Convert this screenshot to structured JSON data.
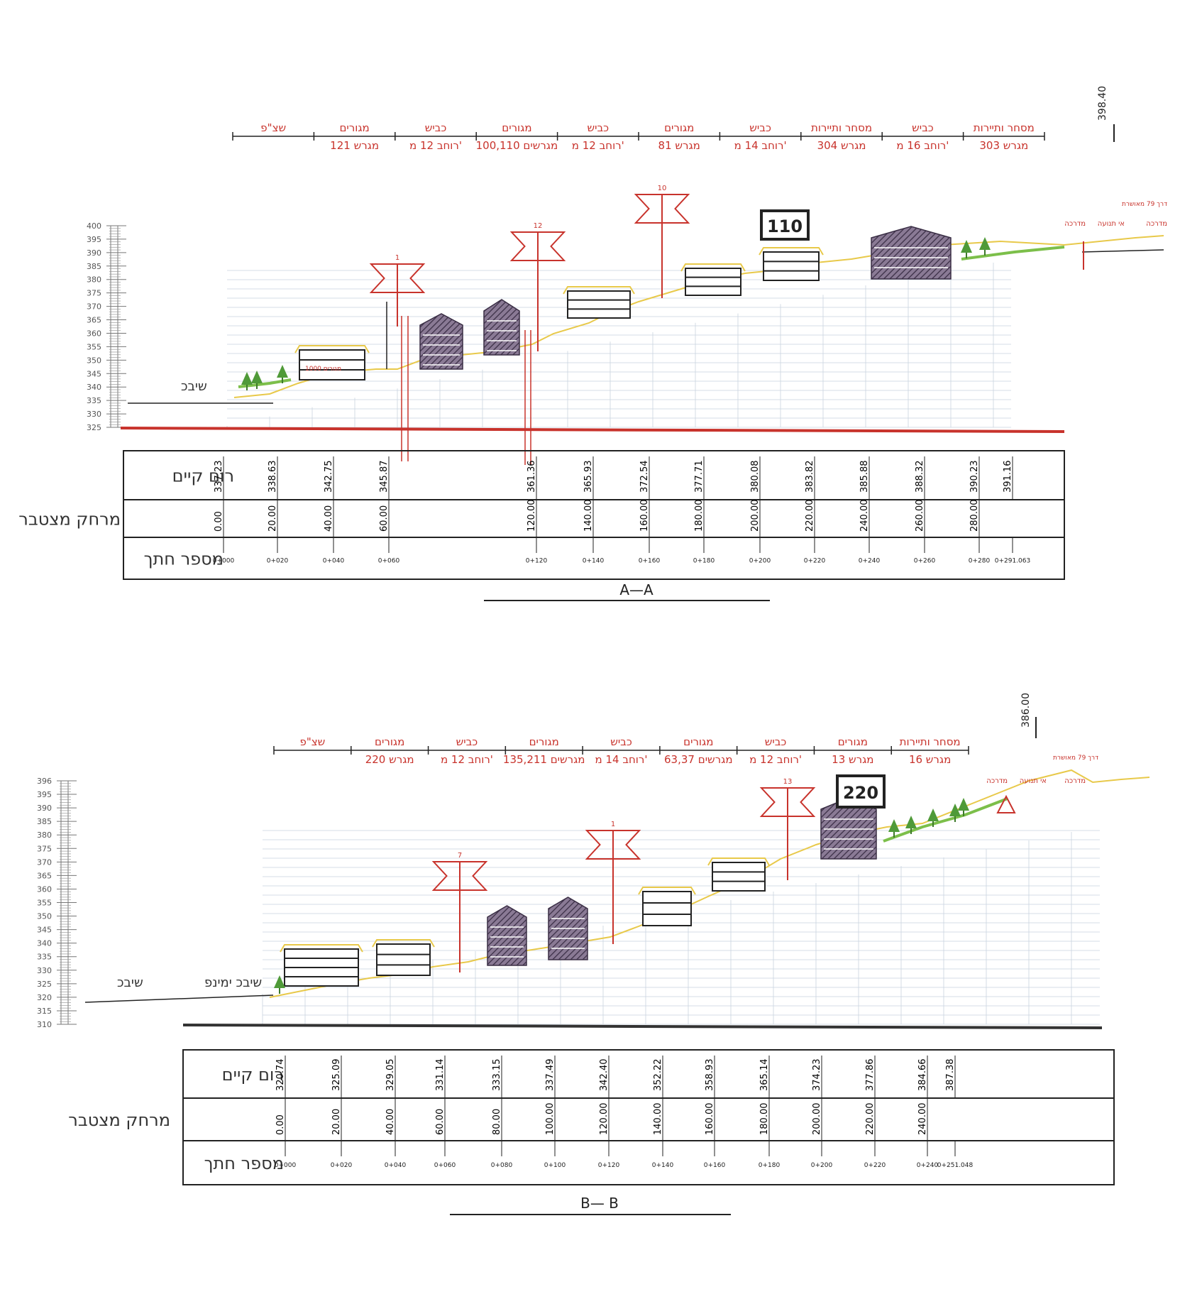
{
  "colors": {
    "red": "#c8332c",
    "grid": "#c9d3df",
    "road": "#e8c94a",
    "green": "#7cbf4a",
    "ink": "#222222"
  },
  "section_a": {
    "title": "A—A",
    "elevation_marker": "398.40",
    "header": [
      {
        "top": "מסחר ותיירות",
        "bottom": "מגרש 303"
      },
      {
        "top": "כביש",
        "bottom": "רוחב 16 מ'"
      },
      {
        "top": "מסחר ותיירות",
        "bottom": "מגרש 304"
      },
      {
        "top": "כביש",
        "bottom": "רוחב 14 מ'"
      },
      {
        "top": "מגורים",
        "bottom": "מגרש 81"
      },
      {
        "top": "כביש",
        "bottom": "רוחב 12 מ'"
      },
      {
        "top": "מגורים",
        "bottom": "מגרשים 100,110"
      },
      {
        "top": "כביש",
        "bottom": "רוחב 12 מ'"
      },
      {
        "top": "מגורים",
        "bottom": "מגרש 121"
      },
      {
        "top": "שצ\"פ",
        "bottom": ""
      }
    ],
    "scale": [
      "400",
      "395",
      "390",
      "385",
      "380",
      "375",
      "370",
      "365",
      "360",
      "355",
      "350",
      "345",
      "340",
      "335",
      "330",
      "325"
    ],
    "lot_label": "110",
    "sheviv_label": "שיבכ",
    "small_label": "מגורים 1000",
    "labels_right": [
      "דרך 79 מאושרת",
      "מדרכה",
      "אי תנועה",
      "מדרכה"
    ],
    "row_labels": [
      "רום קיים",
      "מרחק מצטבר",
      "מספר חתך"
    ],
    "cross_marks": [
      "1",
      "12",
      "10"
    ],
    "elev": [
      "337.23",
      "338.63",
      "342.75",
      "345.87",
      "361.36",
      "365.93",
      "372.54",
      "377.71",
      "380.08",
      "383.82",
      "385.88",
      "388.32",
      "390.23",
      "391.16"
    ],
    "dist": [
      "0.00",
      "20.00",
      "40.00",
      "60.00",
      "120.00",
      "140.00",
      "160.00",
      "180.00",
      "200.00",
      "220.00",
      "240.00",
      "260.00",
      "280.00"
    ],
    "chain": [
      "0+000",
      "0+020",
      "0+040",
      "0+060",
      "0+120",
      "0+140",
      "0+160",
      "0+180",
      "0+200",
      "0+220",
      "0+240",
      "0+260",
      "0+280",
      "0+291.063"
    ]
  },
  "section_b": {
    "title": "B— B",
    "elevation_marker": "386.00",
    "header": [
      {
        "top": "מסחר ותיירות",
        "bottom": "מגרש 16"
      },
      {
        "top": "מגורים",
        "bottom": "מגרש 13"
      },
      {
        "top": "כביש",
        "bottom": "רוחב 12 מ'"
      },
      {
        "top": "מגורים",
        "bottom": "מגרשים 63,37"
      },
      {
        "top": "כביש",
        "bottom": "רוחב 14 מ'"
      },
      {
        "top": "מגורים",
        "bottom": "מגרשים 135,211"
      },
      {
        "top": "כביש",
        "bottom": "רוחב 12 מ'"
      },
      {
        "top": "מגורים",
        "bottom": "מגרש 220"
      },
      {
        "top": "שצ\"פ",
        "bottom": ""
      }
    ],
    "scale": [
      "396",
      "395",
      "390",
      "385",
      "380",
      "375",
      "370",
      "365",
      "360",
      "355",
      "350",
      "345",
      "340",
      "335",
      "330",
      "325",
      "320",
      "315",
      "310"
    ],
    "lot_label": "220",
    "sheviv_label": "שיבכ",
    "sheviv_right_label": "שיבכ ימינפ",
    "labels_right": [
      "דרך 79 מאושרת",
      "מדרכה",
      "אי תנועה",
      "מדרכה"
    ],
    "row_labels": [
      "רום קיים",
      "מרחק מצטבר",
      "מספר חתך"
    ],
    "cross_marks": [
      "7",
      "1",
      "13"
    ],
    "elev": [
      "320.74",
      "325.09",
      "329.05",
      "331.14",
      "333.15",
      "337.49",
      "342.40",
      "352.22",
      "358.93",
      "365.14",
      "374.23",
      "377.86",
      "384.66",
      "387.38"
    ],
    "dist": [
      "0.00",
      "20.00",
      "40.00",
      "60.00",
      "80.00",
      "100.00",
      "120.00",
      "140.00",
      "160.00",
      "180.00",
      "200.00",
      "220.00",
      "240.00"
    ],
    "chain": [
      "0+000",
      "0+020",
      "0+040",
      "0+060",
      "0+080",
      "0+100",
      "0+120",
      "0+140",
      "0+160",
      "0+180",
      "0+200",
      "0+220",
      "0+240",
      "0+251.048"
    ]
  }
}
